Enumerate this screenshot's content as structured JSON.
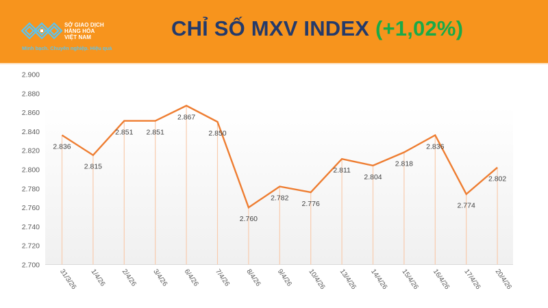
{
  "header": {
    "logo": {
      "name_lines": [
        "SỞ GIAO DỊCH",
        "HÀNG HÓA",
        "VIỆT NAM"
      ],
      "slogan": "Minh bạch. Chuyên nghiệp. Hiệu quả",
      "icon": "mxv-logo-icon"
    },
    "title": "CHỈ SỐ MXV INDEX",
    "change": "(+1,02%)"
  },
  "colors": {
    "header_bg": "#f7941d",
    "title_text": "#243a6b",
    "change_positive": "#1aaa48",
    "line": "#ee7d31",
    "drop_line": "#f8cbad"
  },
  "chart_data": {
    "type": "line",
    "title": "CHỈ SỐ MXV INDEX (+1,02%)",
    "xlabel": "",
    "ylabel": "",
    "categories": [
      "31/3/26",
      "1/4/26",
      "2/4/26",
      "3/4/26",
      "6/4/26",
      "7/4/26",
      "8/4/26",
      "9/4/26",
      "10/4/26",
      "13/4/26",
      "14/4/26",
      "15/4/26",
      "16/4/26",
      "17/4/26",
      "20/4/26"
    ],
    "series": [
      {
        "name": "MXV Index",
        "values": [
          2836,
          2815,
          2851,
          2851,
          2867,
          2850,
          2760,
          2782,
          2776,
          2811,
          2804,
          2818,
          2836,
          2774,
          2802
        ],
        "labels": [
          "2.836",
          "2.815",
          "2.851",
          "2.851",
          "2.867",
          "2.850",
          "2.760",
          "2.782",
          "2.776",
          "2.811",
          "2.804",
          "2.818",
          "2.836",
          "2.774",
          "2.802"
        ]
      }
    ],
    "ylim": [
      2700,
      2900
    ],
    "yticks": [
      2700,
      2720,
      2740,
      2760,
      2780,
      2800,
      2820,
      2840,
      2860,
      2880,
      2900
    ],
    "ytick_labels": [
      "2.700",
      "2.720",
      "2.740",
      "2.760",
      "2.780",
      "2.800",
      "2.820",
      "2.840",
      "2.860",
      "2.880",
      "2.900"
    ],
    "grid": false,
    "drop_lines": true,
    "legend": "none"
  }
}
